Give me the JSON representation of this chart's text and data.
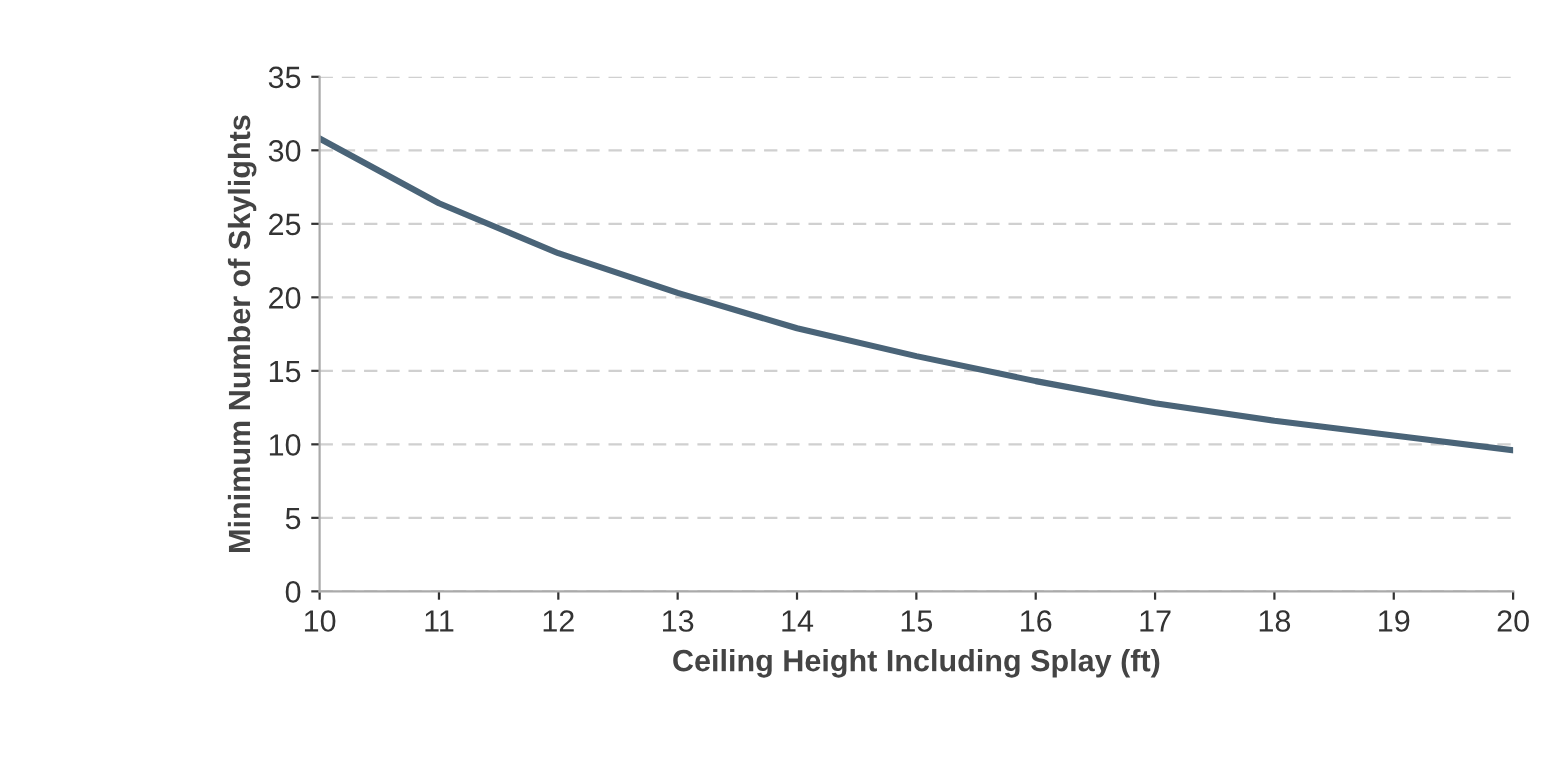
{
  "chart_data": {
    "type": "line",
    "xlabel": "Ceiling Height Including Splay (ft)",
    "ylabel": "Minimum Number of Skylights",
    "x": [
      10,
      11,
      12,
      13,
      14,
      15,
      16,
      17,
      18,
      19,
      20
    ],
    "series": [
      {
        "color": "#4a6478",
        "values": [
          30.8,
          26.4,
          23.0,
          20.3,
          17.9,
          16.0,
          14.3,
          12.8,
          11.6,
          10.6,
          9.6
        ]
      }
    ],
    "xlim": [
      10,
      20
    ],
    "xticks": [
      10,
      11,
      12,
      13,
      14,
      15,
      16,
      17,
      18,
      19,
      20
    ],
    "ylim": [
      0,
      35
    ],
    "yticks": [
      0,
      5,
      10,
      15,
      20,
      25,
      30,
      35
    ],
    "grid": "y",
    "marker": "none",
    "line_style": "solid",
    "legend": false
  }
}
